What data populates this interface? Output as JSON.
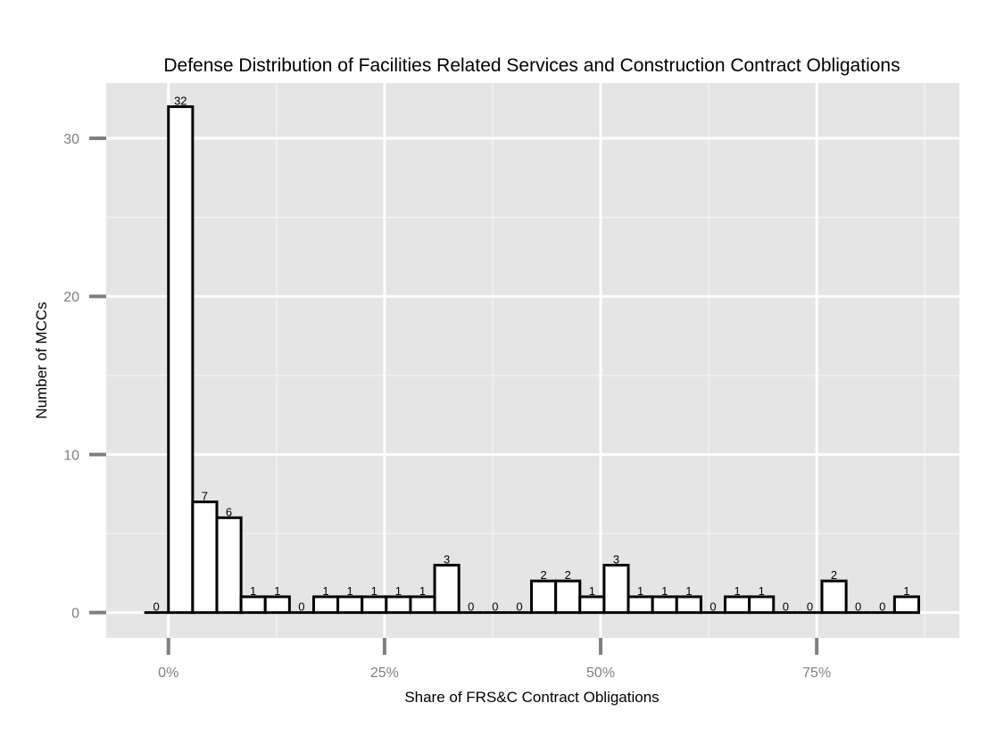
{
  "chart_data": {
    "type": "bar",
    "title": "Defense Distribution of Facilities Related Services and Construction Contract Obligations",
    "xlabel": "Share of FRS&C Contract Obligations",
    "ylabel": "Number of MCCs",
    "x_ticks": [
      {
        "value": 0,
        "label": "0%"
      },
      {
        "value": 25,
        "label": "25%"
      },
      {
        "value": 50,
        "label": "50%"
      },
      {
        "value": 75,
        "label": "75%"
      }
    ],
    "y_ticks": [
      {
        "value": 0,
        "label": "0"
      },
      {
        "value": 10,
        "label": "10"
      },
      {
        "value": 20,
        "label": "20"
      },
      {
        "value": 30,
        "label": "30"
      }
    ],
    "xlim": [
      -7.2,
      91.5
    ],
    "ylim": [
      -1.6,
      33.5
    ],
    "bin_width": 2.8,
    "bin_start": -2.8,
    "values": [
      0,
      32,
      7,
      6,
      1,
      1,
      0,
      1,
      1,
      1,
      1,
      1,
      3,
      0,
      0,
      0,
      2,
      2,
      1,
      3,
      1,
      1,
      1,
      0,
      1,
      1,
      0,
      0,
      2,
      0,
      0,
      1
    ],
    "grid": true,
    "background": "#e5e5e5"
  }
}
